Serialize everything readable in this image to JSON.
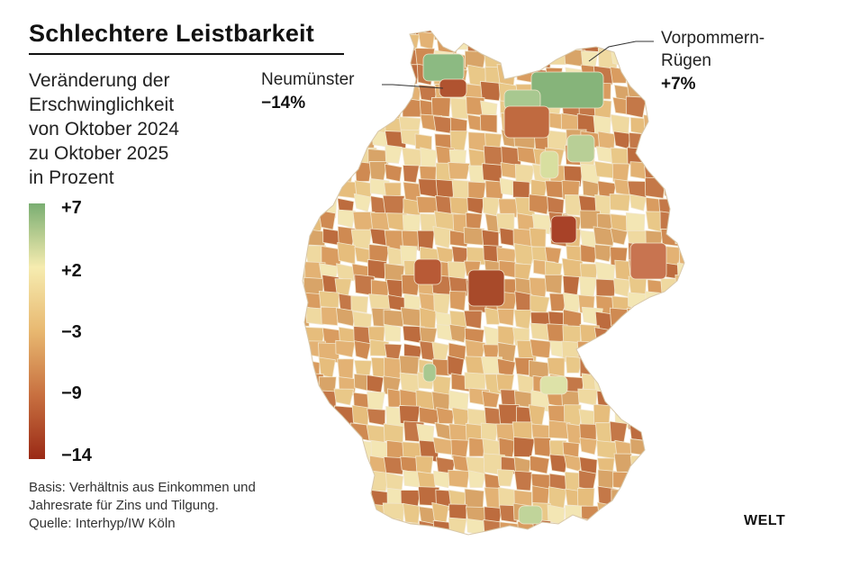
{
  "title": "Schlechtere Leistbarkeit",
  "subtitle_lines": [
    "Veränderung der",
    "Erschwinglichkeit",
    "von Oktober 2024",
    "zu Oktober 2025",
    "in Prozent"
  ],
  "legend": {
    "ticks": [
      "+7",
      "+2",
      "−3",
      "−9",
      "−14"
    ],
    "colors": [
      "#7aae72",
      "#f6ecb0",
      "#e8b870",
      "#c87040",
      "#9a2a16"
    ]
  },
  "callouts": {
    "neumuenster": {
      "name": "Neumünster",
      "value": "−14%"
    },
    "vorpommern": {
      "name_line1": "Vorpommern-",
      "name_line2": "Rügen",
      "value": "+7%"
    }
  },
  "note_lines": [
    "Basis: Verhältnis aus Einkommen und",
    "Jahresrate für Zins und Tilgung.",
    "Quelle: Interhyp/IW Köln"
  ],
  "brand": "WELT"
}
